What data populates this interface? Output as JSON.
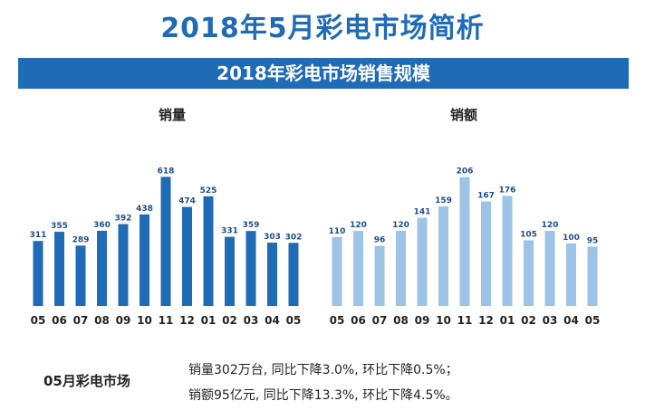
{
  "title": "2018年5月彩电市场简析",
  "banner": "2018年彩电市场销售规模",
  "chart_data": [
    {
      "type": "bar",
      "title": "销量",
      "categories": [
        "05",
        "06",
        "07",
        "08",
        "09",
        "10",
        "11",
        "12",
        "01",
        "02",
        "03",
        "04",
        "05"
      ],
      "values": [
        311,
        355,
        289,
        360,
        392,
        438,
        618,
        474,
        525,
        331,
        359,
        303,
        302
      ],
      "ylim": [
        0,
        650
      ],
      "color": "#1f6bb5",
      "label_color": "#1f4e86"
    },
    {
      "type": "bar",
      "title": "销额",
      "categories": [
        "05",
        "06",
        "07",
        "08",
        "09",
        "10",
        "11",
        "12",
        "01",
        "02",
        "03",
        "04",
        "05"
      ],
      "values": [
        110,
        120,
        96,
        120,
        141,
        159,
        206,
        167,
        176,
        105,
        120,
        100,
        95
      ],
      "ylim": [
        0,
        217
      ],
      "color": "#9dc3e6",
      "label_color": "#1f4e86"
    }
  ],
  "footer": {
    "label": "05月彩电市场",
    "line1": "销量302万台, 同比下降3.0%, 环比下降0.5%；",
    "line2": "销额95亿元, 同比下降13.3%, 环比下降4.5%。"
  }
}
